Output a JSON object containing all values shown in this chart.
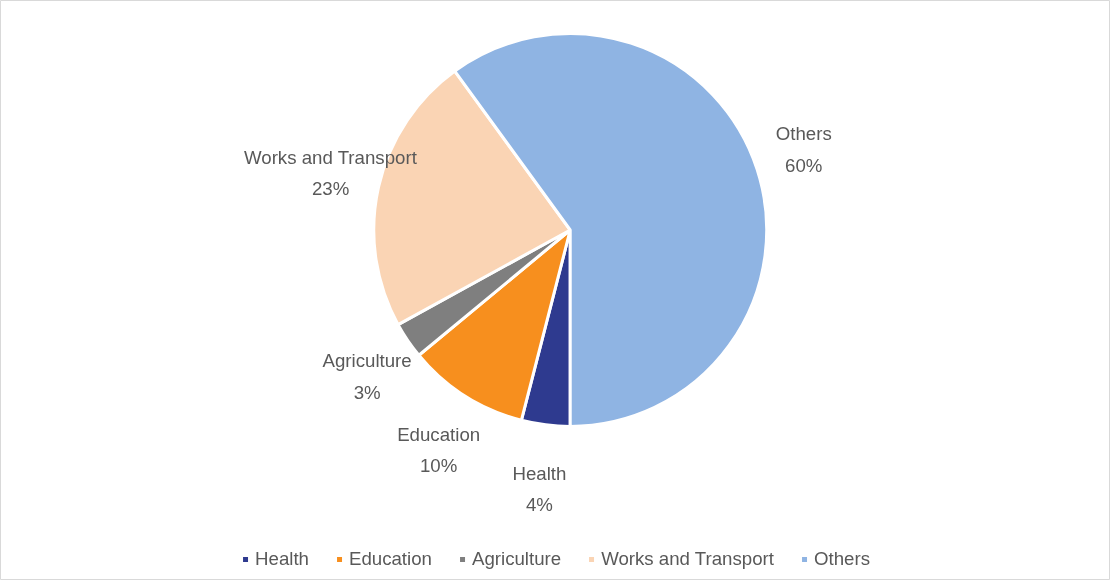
{
  "chart_data": {
    "type": "pie",
    "categories": [
      "Health",
      "Education",
      "Agriculture",
      "Works and Transport",
      "Others"
    ],
    "values": [
      4,
      10,
      3,
      23,
      60
    ],
    "colors": [
      "#2e3a8f",
      "#f78f1e",
      "#7f7f7f",
      "#fad4b4",
      "#8fb4e3"
    ],
    "value_labels": [
      "4%",
      "10%",
      "3%",
      "23%",
      "60%"
    ],
    "data_labels": true,
    "legend": "bottom"
  }
}
